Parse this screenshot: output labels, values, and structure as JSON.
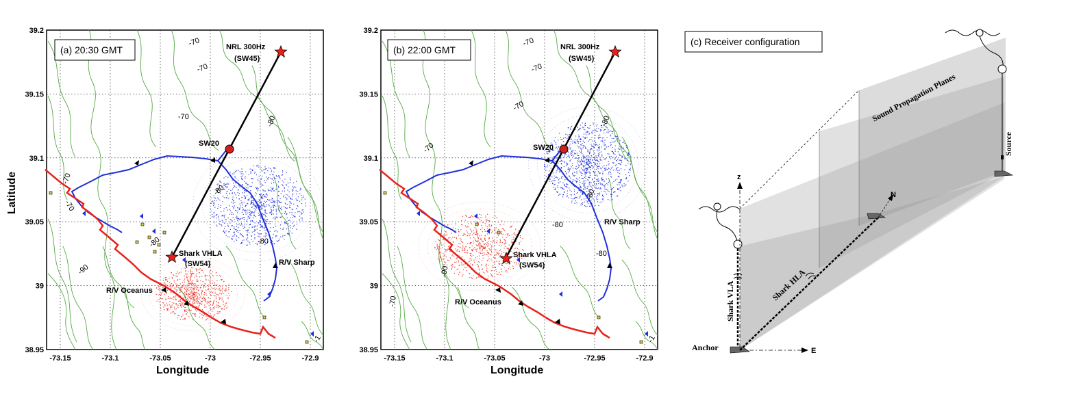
{
  "panels": [
    {
      "id": "a",
      "title": "(a) 20:30 GMT",
      "source_label": "NRL 300Hz",
      "source_sub": "(SW45)",
      "mooring_label": "SW20",
      "array_label": "Shark VHLA",
      "array_sub": "(SW54)",
      "ship1_label": "R/V Sharp",
      "ship2_label": "R/V Oceanus",
      "contours": [
        "-70",
        "-70",
        "-70",
        "-80",
        "-70",
        "-70",
        "-80",
        "-80",
        "-80",
        "-90",
        "-1"
      ]
    },
    {
      "id": "b",
      "title": "(b) 22:00 GMT",
      "source_label": "NRL 300Hz",
      "source_sub": "(SW45)",
      "mooring_label": "SW20",
      "array_label": "Shark VHLA",
      "array_sub": "(SW54)",
      "ship1_label": "R/V Sharp",
      "ship2_label": "R/V Oceanus",
      "contours": [
        "-70",
        "-70",
        "-70",
        "-80",
        "-70",
        "-80",
        "-80",
        "-80",
        "-90",
        "-70",
        "-1"
      ]
    }
  ],
  "axes": {
    "xlabel": "Longitude",
    "ylabel": "Latitude",
    "xticks": [
      "-73.15",
      "-73.1",
      "-73.05",
      "-73",
      "-72.95",
      "-72.9"
    ],
    "yticks": [
      "39.2",
      "39.15",
      "39.1",
      "39.05",
      "39",
      "38.95"
    ]
  },
  "diagram": {
    "title": "(c) Receiver configuration",
    "planes_label": "Sound Propagation Planes",
    "source_label": "Source",
    "vla_label": "Shark VLA",
    "hla_label": "Shark HLA",
    "anchor_label": "Anchor",
    "axis_z": "z",
    "axis_n": "N",
    "axis_e": "E"
  },
  "colors": {
    "contour": "#55aa44",
    "ship1_track": "#1f2fd8",
    "ship2_track": "#e8221a",
    "ship1_field": "#2a3ae0",
    "ship2_field": "#f03a30",
    "star": "#e8221a",
    "plane": "#bdbdbd"
  }
}
